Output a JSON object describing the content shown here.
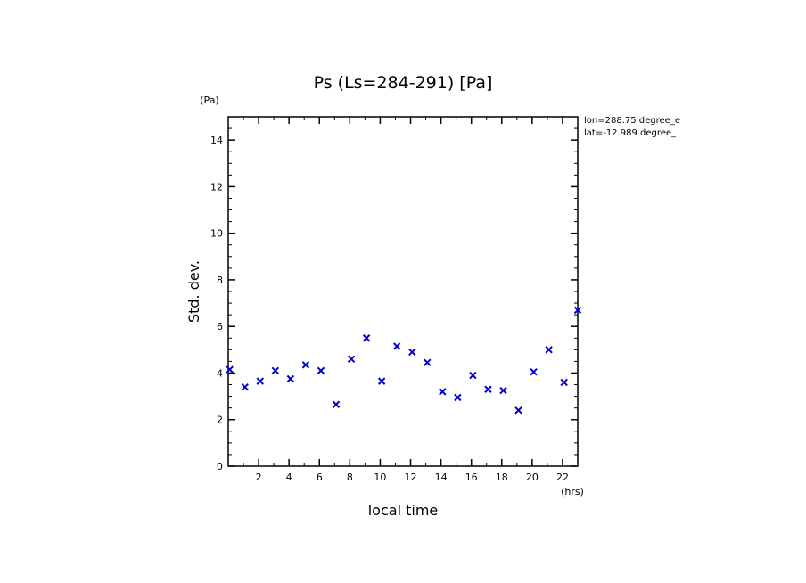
{
  "chart_data": {
    "type": "scatter",
    "title": "Ps (Ls=284-291) [Pa]",
    "xlabel": "local time",
    "ylabel": "Std. dev.",
    "x_unit": "(hrs)",
    "y_unit": "(Pa)",
    "xlim": [
      0,
      23
    ],
    "ylim": [
      0,
      15
    ],
    "x_ticks": [
      2,
      4,
      6,
      8,
      10,
      12,
      14,
      16,
      18,
      20,
      22
    ],
    "y_ticks": [
      0,
      2,
      4,
      6,
      8,
      10,
      12,
      14
    ],
    "annotations": [
      "lon=288.75 degree_e",
      "lat=-12.989 degree_"
    ],
    "marker": "x",
    "marker_color": "#0000cc",
    "points": [
      {
        "x": 0.1,
        "y": 4.15
      },
      {
        "x": 1.1,
        "y": 3.4
      },
      {
        "x": 2.1,
        "y": 3.65
      },
      {
        "x": 3.1,
        "y": 4.1
      },
      {
        "x": 4.1,
        "y": 3.75
      },
      {
        "x": 5.1,
        "y": 4.35
      },
      {
        "x": 6.1,
        "y": 4.1
      },
      {
        "x": 7.1,
        "y": 2.65
      },
      {
        "x": 8.1,
        "y": 4.6
      },
      {
        "x": 9.1,
        "y": 5.5
      },
      {
        "x": 10.1,
        "y": 3.65
      },
      {
        "x": 11.1,
        "y": 5.15
      },
      {
        "x": 12.1,
        "y": 4.9
      },
      {
        "x": 13.1,
        "y": 4.45
      },
      {
        "x": 14.1,
        "y": 3.2
      },
      {
        "x": 15.1,
        "y": 2.95
      },
      {
        "x": 16.1,
        "y": 3.9
      },
      {
        "x": 17.1,
        "y": 3.3
      },
      {
        "x": 18.1,
        "y": 3.25
      },
      {
        "x": 19.1,
        "y": 2.4
      },
      {
        "x": 20.1,
        "y": 4.05
      },
      {
        "x": 21.1,
        "y": 5.0
      },
      {
        "x": 22.1,
        "y": 3.6
      },
      {
        "x": 23.0,
        "y": 6.7
      }
    ]
  }
}
